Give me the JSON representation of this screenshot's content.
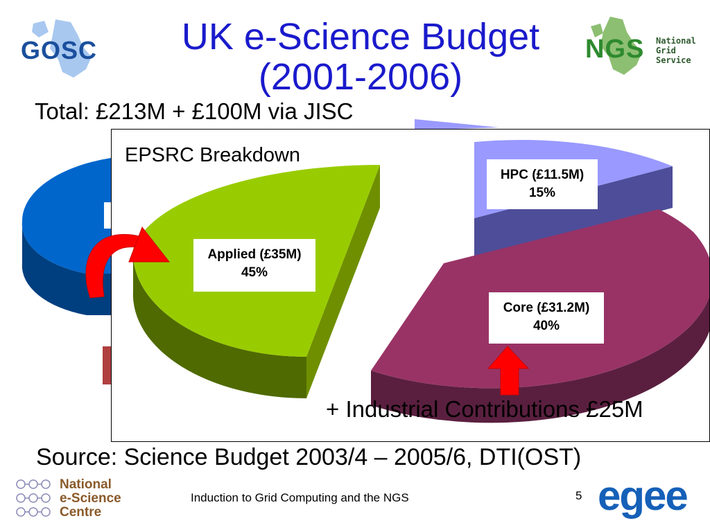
{
  "slide": {
    "title_line1": "UK e-Science Budget",
    "title_line2": "(2001-2006)",
    "total": "Total: £213M",
    "total_extra": "+ £100M via JISC",
    "source": "Source: Science Budget 2003/4 – 2005/6, DTI(OST)",
    "footer": "Induction to Grid Computing and the NGS",
    "page_number": "5",
    "industrial": "+ Industrial Contributions £25M"
  },
  "logos": {
    "gosc": "GOSC",
    "ngs_initials": "NGS",
    "ngs_line1": "National",
    "ngs_line2": "Grid",
    "ngs_line3": "Service",
    "nesc_line1": "National",
    "nesc_line2": "e-Science",
    "nesc_line3": "Centre",
    "egee": "egee"
  },
  "colors": {
    "title": "#1a1acc",
    "applied": "#99cc00",
    "core": "#993366",
    "hpc": "#9999ff",
    "background_pie": "#0066cc",
    "arrow": "#ff0000"
  },
  "chart_data": {
    "type": "pie",
    "title": "EPSRC Breakdown",
    "slices": [
      {
        "key": "applied",
        "label": "Applied (£35M)",
        "value": 35,
        "percent": "45%",
        "color": "#99cc00"
      },
      {
        "key": "core",
        "label": "Core (£31.2M)",
        "value": 31.2,
        "percent": "40%",
        "color": "#993366"
      },
      {
        "key": "hpc",
        "label": "HPC (£11.5M)",
        "value": 11.5,
        "percent": "15%",
        "color": "#9999ff"
      }
    ]
  }
}
